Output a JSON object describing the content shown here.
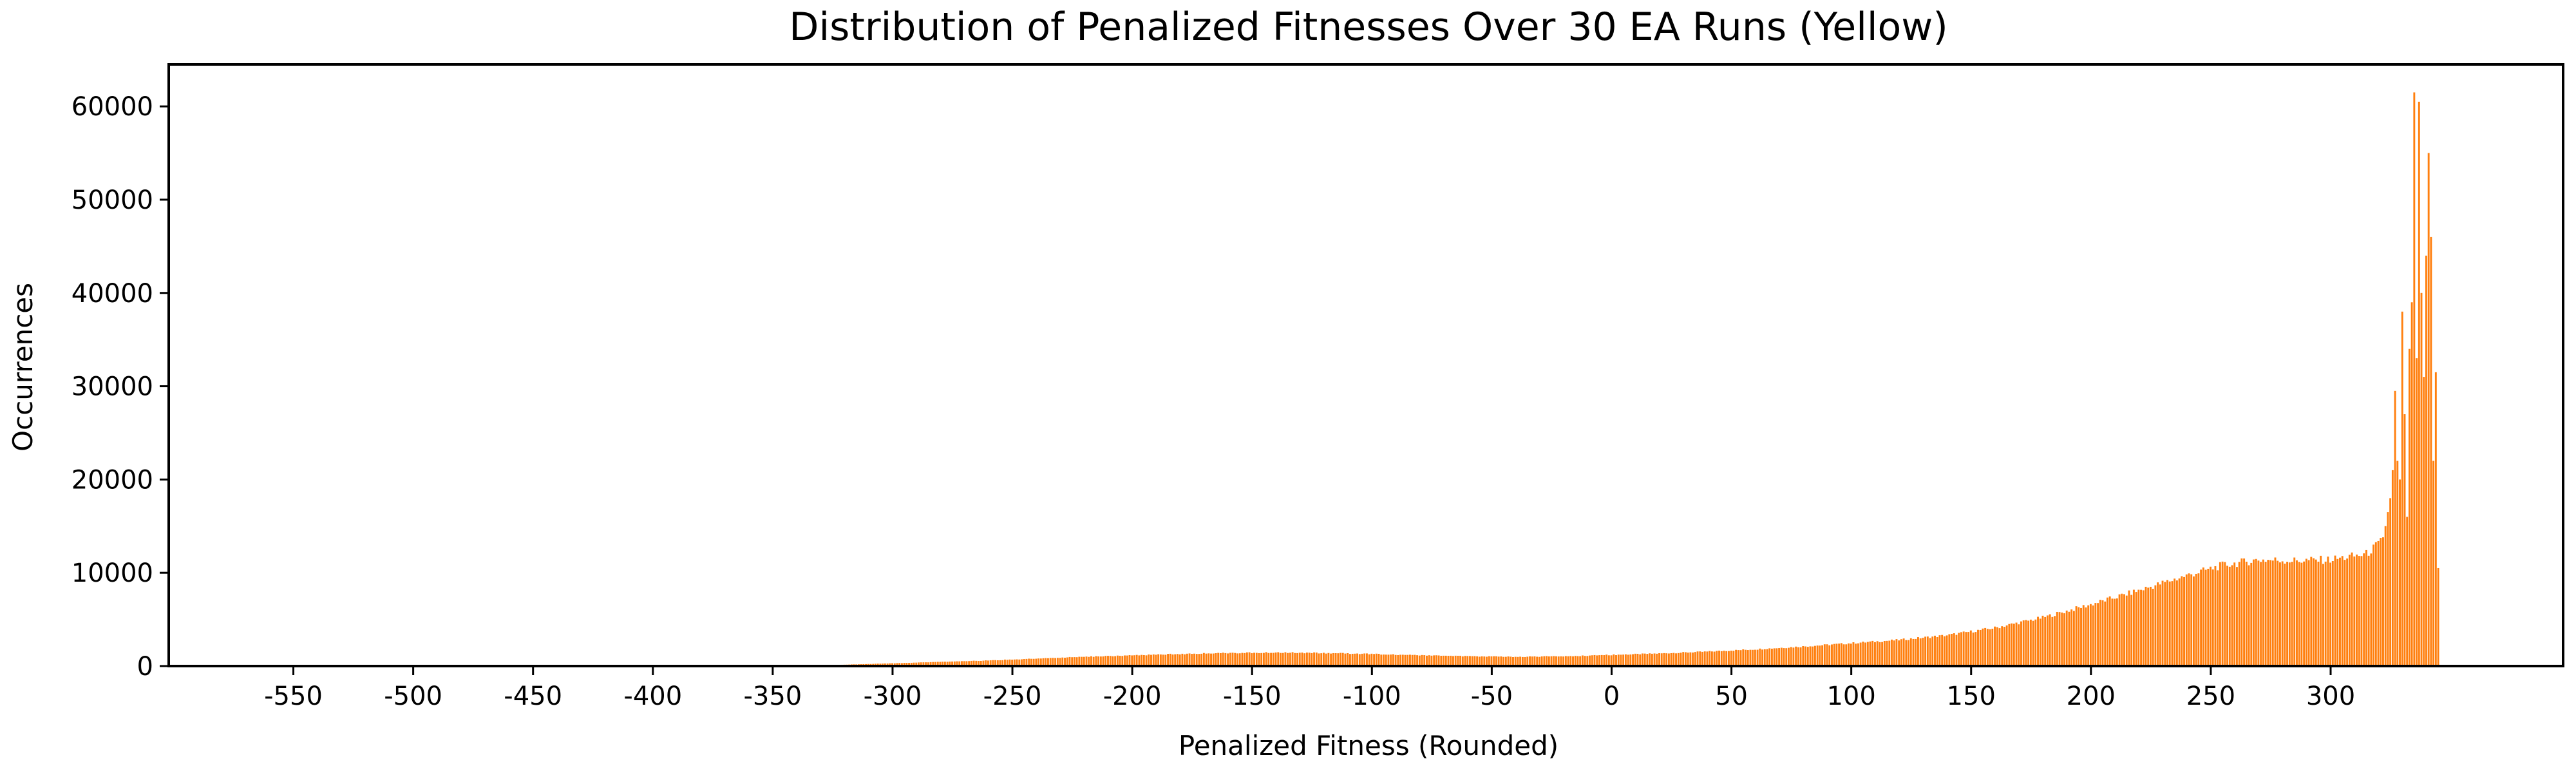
{
  "chart_data": {
    "type": "bar",
    "title": "Distribution of Penalized Fitnesses Over 30 EA Runs (Yellow)",
    "xlabel": "Penalized Fitness (Rounded)",
    "ylabel": "Occurrences",
    "xlim": [
      -602,
      397
    ],
    "ylim": [
      0,
      64500
    ],
    "xticks": [
      -550,
      -500,
      -450,
      -400,
      -350,
      -300,
      -250,
      -200,
      -150,
      -100,
      -50,
      0,
      50,
      100,
      150,
      200,
      250,
      300
    ],
    "yticks": [
      0,
      10000,
      20000,
      30000,
      40000,
      50000,
      60000
    ],
    "grid": false,
    "bar_color": "#ff7f0e",
    "bin_width": 1,
    "envelope": [
      [
        -360,
        0
      ],
      [
        -340,
        50
      ],
      [
        -320,
        150
      ],
      [
        -300,
        300
      ],
      [
        -280,
        450
      ],
      [
        -260,
        600
      ],
      [
        -240,
        800
      ],
      [
        -220,
        1000
      ],
      [
        -200,
        1150
      ],
      [
        -180,
        1300
      ],
      [
        -160,
        1400
      ],
      [
        -140,
        1450
      ],
      [
        -120,
        1400
      ],
      [
        -100,
        1300
      ],
      [
        -80,
        1150
      ],
      [
        -60,
        1050
      ],
      [
        -40,
        1000
      ],
      [
        -20,
        1050
      ],
      [
        0,
        1200
      ],
      [
        20,
        1350
      ],
      [
        40,
        1550
      ],
      [
        60,
        1800
      ],
      [
        80,
        2100
      ],
      [
        100,
        2450
      ],
      [
        120,
        2800
      ],
      [
        140,
        3300
      ],
      [
        160,
        4100
      ],
      [
        180,
        5200
      ],
      [
        200,
        6600
      ],
      [
        220,
        8100
      ],
      [
        240,
        9700
      ],
      [
        255,
        10800
      ],
      [
        270,
        11400
      ],
      [
        285,
        11300
      ],
      [
        300,
        11400
      ],
      [
        315,
        12000
      ],
      [
        322,
        13500
      ]
    ],
    "spikes": [
      [
        323,
        15000
      ],
      [
        324,
        16500
      ],
      [
        325,
        18000
      ],
      [
        326,
        21000
      ],
      [
        327,
        29500
      ],
      [
        328,
        22000
      ],
      [
        329,
        20000
      ],
      [
        330,
        38000
      ],
      [
        331,
        27000
      ],
      [
        332,
        16000
      ],
      [
        333,
        34000
      ],
      [
        334,
        39000
      ],
      [
        335,
        61500
      ],
      [
        336,
        33000
      ],
      [
        337,
        60500
      ],
      [
        338,
        40000
      ],
      [
        339,
        31000
      ],
      [
        340,
        44000
      ],
      [
        341,
        55000
      ],
      [
        342,
        46000
      ],
      [
        343,
        22000
      ],
      [
        344,
        31500
      ],
      [
        345,
        10500
      ]
    ]
  }
}
